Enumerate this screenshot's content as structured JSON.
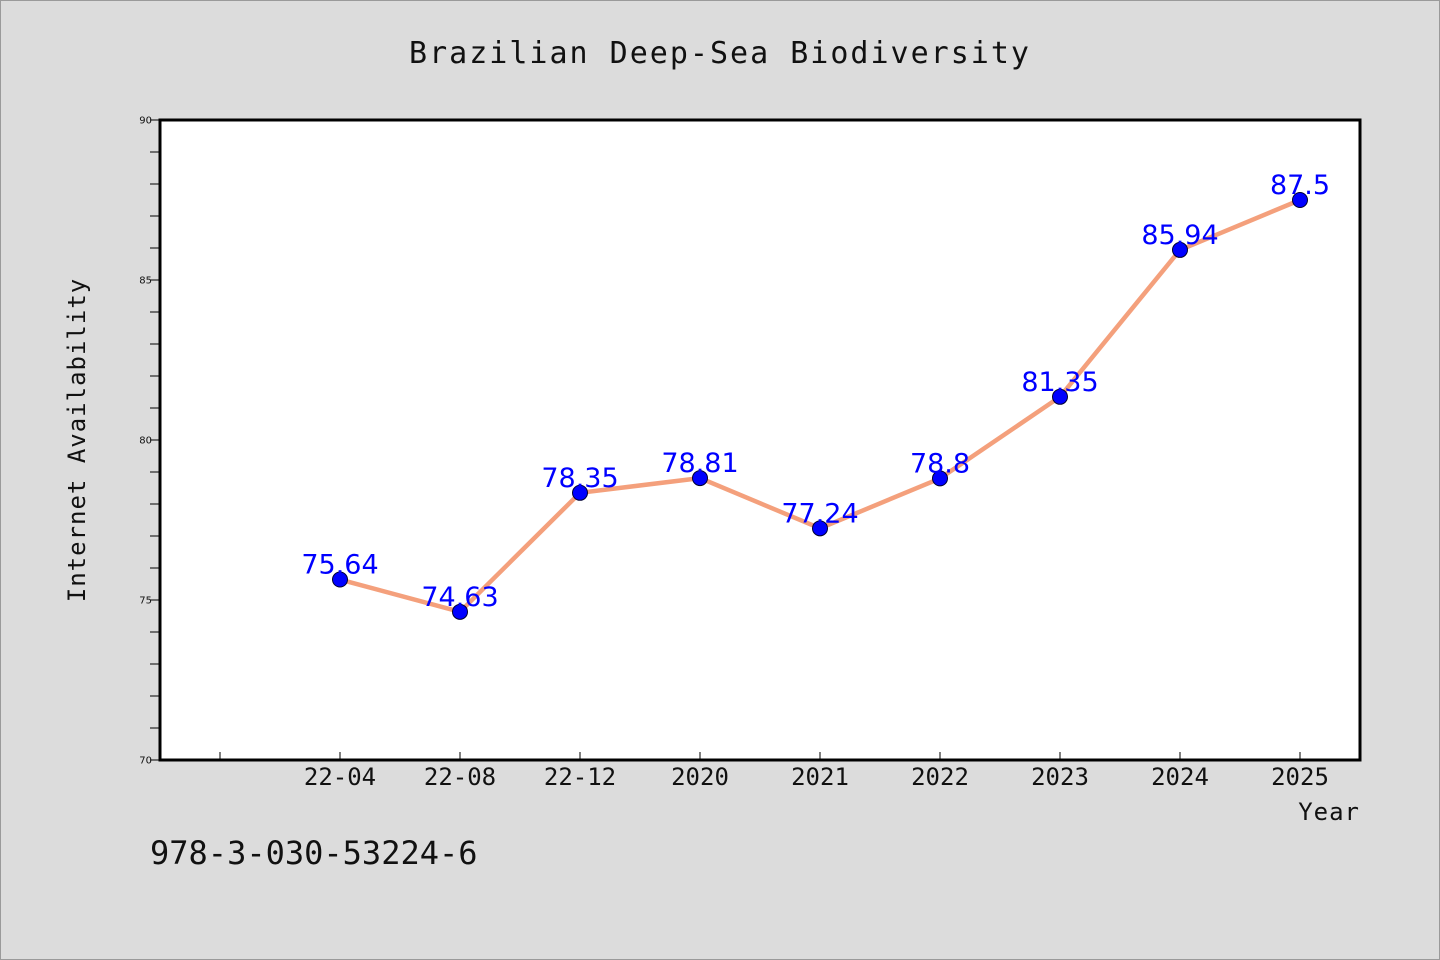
{
  "chart_data": {
    "type": "line",
    "title": "Brazilian Deep-Sea Biodiversity",
    "xlabel": "Year",
    "ylabel": "Internet Availability",
    "categories": [
      "22-04",
      "22-08",
      "22-12",
      "2020",
      "2021",
      "2022",
      "2023",
      "2024",
      "2025"
    ],
    "series": [
      {
        "values": [
          75.64,
          74.63,
          78.35,
          78.81,
          77.24,
          78.8,
          81.35,
          85.94,
          87.5
        ],
        "labels": [
          "75.64",
          "74.63",
          "78.35",
          "78.81",
          "77.24",
          "78.8",
          "81.35",
          "85.94",
          "87.5"
        ],
        "line_color": "#f4a07c",
        "marker_color": "#0000ff"
      }
    ],
    "ylim": [
      70,
      90
    ],
    "yticks": [
      70,
      75,
      80,
      85,
      90
    ],
    "grid": false,
    "legend": "none"
  },
  "footer": {
    "isbn": "978-3-030-53224-6"
  },
  "colors": {
    "background": "#dcdcdc",
    "plot_background": "#ffffff",
    "label_color": "#0000ff"
  }
}
